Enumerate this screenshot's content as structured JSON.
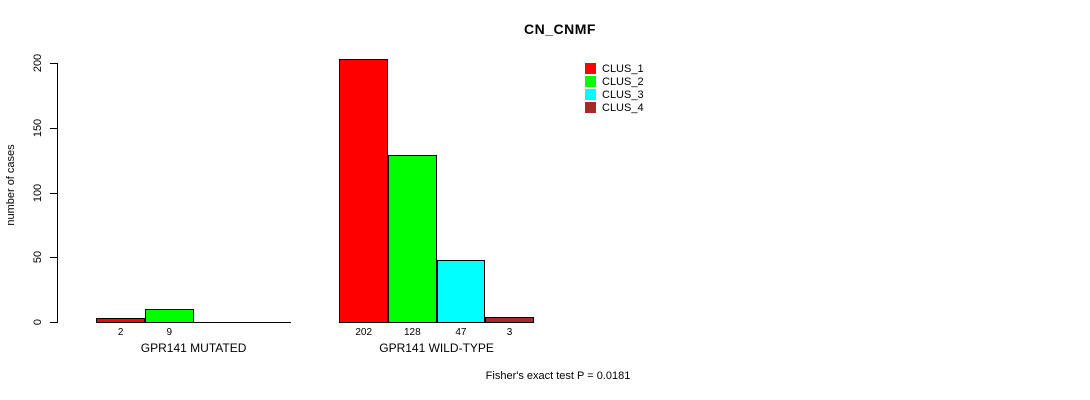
{
  "chart_data": {
    "type": "bar",
    "title": "CN_CNMF",
    "ylabel": "number of cases",
    "xlabel": "",
    "ylim": [
      0,
      200
    ],
    "yticks": [
      0,
      50,
      100,
      150,
      200
    ],
    "grid": false,
    "categories": [
      "GPR141 MUTATED",
      "GPR141 WILD-TYPE"
    ],
    "series": [
      {
        "name": "CLUS_1",
        "color": "#ff0000",
        "values": [
          2,
          202
        ]
      },
      {
        "name": "CLUS_2",
        "color": "#00ff00",
        "values": [
          9,
          128
        ]
      },
      {
        "name": "CLUS_3",
        "color": "#00ffff",
        "values": [
          0,
          47
        ]
      },
      {
        "name": "CLUS_4",
        "color": "#a52a2a",
        "values": [
          0,
          3
        ]
      }
    ],
    "bar_value_labels": [
      [
        "2",
        "9",
        null,
        null
      ],
      [
        "202",
        "128",
        "47",
        "3"
      ]
    ],
    "legend": {
      "position": "top-right",
      "entries": [
        "CLUS_1",
        "CLUS_2",
        "CLUS_3",
        "CLUS_4"
      ]
    },
    "annotation": "Fisher's exact test P = 0.0181"
  }
}
